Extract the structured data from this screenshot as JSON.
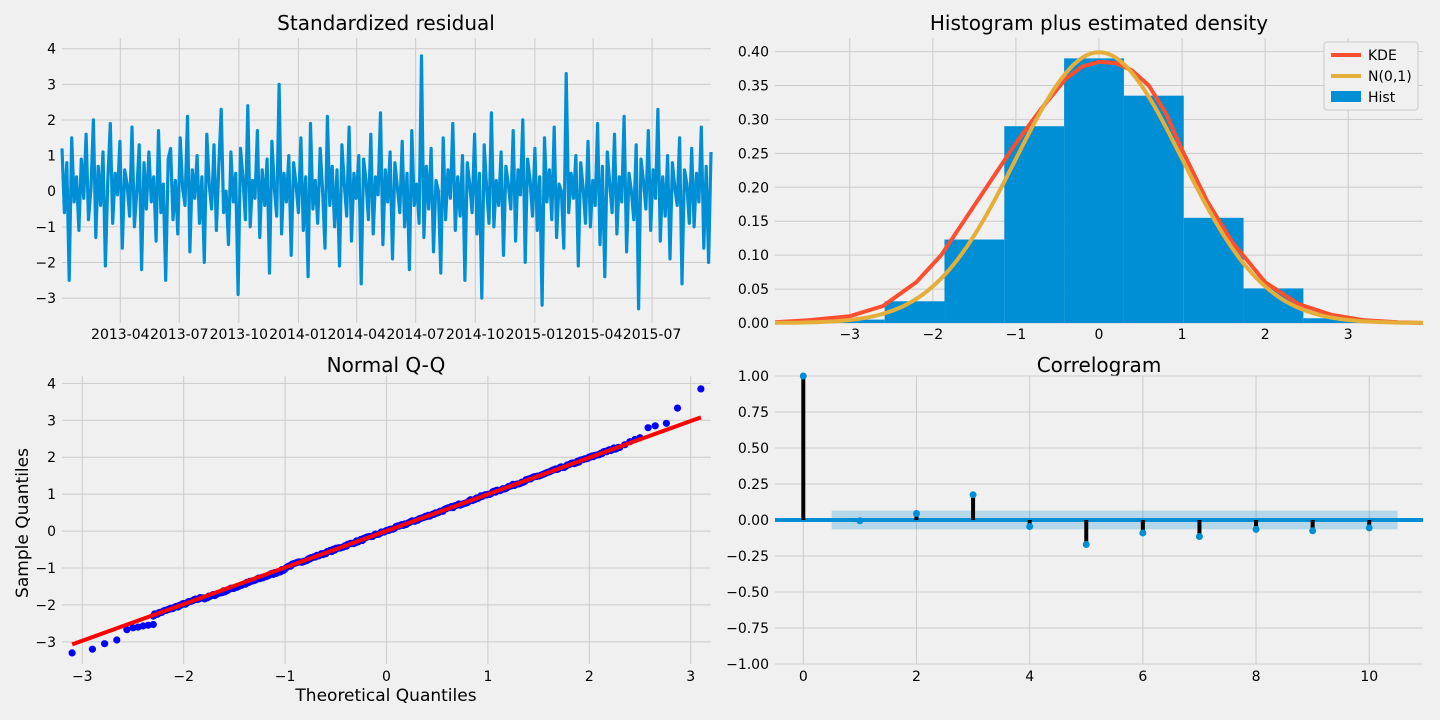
{
  "chart_data": [
    {
      "id": "resid",
      "type": "line",
      "title": "Standardized residual",
      "xlabel": "",
      "ylabel": "",
      "x_ticks": [
        "2013-04",
        "2013-07",
        "2013-10",
        "2014-01",
        "2014-04",
        "2014-07",
        "2014-10",
        "2015-01",
        "2015-04",
        "2015-07"
      ],
      "x_range": [
        "2013-01-01",
        "2015-09-30"
      ],
      "ylim": [
        -3.7,
        4.3
      ],
      "y_ticks": [
        -3,
        -2,
        -1,
        0,
        1,
        2,
        3,
        4
      ],
      "grid": true,
      "color": "#008fd5",
      "series": [
        {
          "values": [
            1.2,
            -0.6,
            0.8,
            -2.5,
            1.5,
            -0.3,
            0.4,
            -1.1,
            0.9,
            -0.2,
            1.6,
            -0.8,
            0.1,
            2.0,
            -1.3,
            0.7,
            -0.4,
            1.1,
            -2.1,
            0.3,
            1.9,
            -0.9,
            0.5,
            -0.1,
            1.4,
            -1.6,
            0.6,
            0.2,
            -0.7,
            1.8,
            -1.0,
            0.0,
            1.3,
            -2.2,
            0.8,
            -0.5,
            1.1,
            -0.3,
            0.4,
            -1.4,
            1.7,
            -0.6,
            0.2,
            -2.5,
            0.9,
            1.2,
            -0.8,
            0.3,
            -1.2,
            1.5,
            0.1,
            -0.4,
            2.1,
            -1.7,
            0.6,
            -0.2,
            1.0,
            -0.9,
            0.4,
            -2.0,
            1.6,
            0.2,
            -0.5,
            1.3,
            -1.1,
            0.7,
            2.3,
            -0.6,
            0.0,
            -1.5,
            1.1,
            -0.3,
            0.5,
            -2.9,
            1.2,
            0.4,
            -0.8,
            2.4,
            -1.0,
            0.3,
            -0.2,
            1.7,
            -1.3,
            0.6,
            -0.4,
            0.9,
            -2.3,
            1.4,
            0.1,
            -0.7,
            3.0,
            -1.2,
            0.5,
            -0.3,
            1.0,
            -1.8,
            0.8,
            0.2,
            -0.6,
            1.5,
            -1.1,
            0.4,
            -2.4,
            1.9,
            -0.5,
            0.3,
            -0.9,
            1.2,
            0.0,
            -1.6,
            2.1,
            -0.4,
            0.7,
            -1.0,
            0.6,
            -2.1,
            1.3,
            0.2,
            -0.7,
            1.8,
            -1.4,
            0.5,
            -0.2,
            1.0,
            -2.6,
            0.9,
            0.3,
            -0.8,
            1.6,
            -1.2,
            0.4,
            -0.1,
            2.2,
            -1.5,
            0.6,
            -0.3,
            1.1,
            -1.9,
            0.8,
            0.1,
            -0.6,
            1.4,
            -1.0,
            0.5,
            -2.2,
            1.7,
            -0.4,
            0.2,
            -0.9,
            3.8,
            -1.3,
            0.7,
            -0.5,
            1.2,
            -1.7,
            0.3,
            0.0,
            -2.3,
            1.5,
            -0.8,
            0.6,
            -0.2,
            1.9,
            -1.1,
            0.4,
            -0.7,
            1.0,
            -2.5,
            0.8,
            0.2,
            -0.6,
            1.6,
            -1.2,
            0.5,
            -3.0,
            1.3,
            0.1,
            -0.9,
            2.2,
            -1.0,
            0.3,
            -0.4,
            1.1,
            -1.8,
            0.7,
            0.2,
            -0.5,
            1.7,
            -1.4,
            0.6,
            -0.1,
            2.0,
            -2.0,
            0.9,
            0.3,
            -0.7,
            1.2,
            -1.1,
            0.4,
            -3.2,
            1.5,
            -0.3,
            0.6,
            -0.8,
            1.8,
            -1.3,
            0.2,
            0.0,
            -1.6,
            3.3,
            -0.6,
            0.5,
            -0.2,
            1.0,
            -2.1,
            0.8,
            0.1,
            -0.9,
            1.4,
            -1.0,
            0.3,
            -0.4,
            1.9,
            -1.5,
            0.7,
            -2.4,
            1.1,
            0.2,
            -0.6,
            1.6,
            -1.2,
            0.4,
            -0.3,
            2.1,
            -1.7,
            0.5,
            0.0,
            -0.8,
            1.3,
            -3.3,
            0.9,
            0.3,
            -0.5,
            1.7,
            -1.1,
            0.6,
            -0.2,
            2.3,
            -1.4,
            0.4,
            -0.7,
            1.0,
            -1.9,
            0.8,
            0.1,
            -0.4,
            1.5,
            -2.6,
            0.6,
            0.2,
            -0.9,
            1.2,
            -1.0,
            0.5,
            -0.3,
            1.8,
            -1.6,
            0.7,
            -2.0,
            1.1
          ]
        }
      ]
    },
    {
      "id": "hist",
      "type": "bar",
      "title": "Histogram plus estimated density",
      "xlabel": "",
      "ylabel": "",
      "xlim": [
        -3.9,
        3.9
      ],
      "ylim": [
        0,
        0.42
      ],
      "x_ticks": [
        -3,
        -2,
        -1,
        0,
        1,
        2,
        3
      ],
      "y_ticks": [
        "0.00",
        "0.05",
        "0.10",
        "0.15",
        "0.20",
        "0.25",
        "0.30",
        "0.35",
        "0.40"
      ],
      "grid": true,
      "legend_position": "top-right",
      "bins": [
        {
          "x0": -3.3,
          "x1": -2.58,
          "value": 0.005
        },
        {
          "x0": -2.58,
          "x1": -1.86,
          "value": 0.032
        },
        {
          "x0": -1.86,
          "x1": -1.14,
          "value": 0.123
        },
        {
          "x0": -1.14,
          "x1": -0.42,
          "value": 0.29
        },
        {
          "x0": -0.42,
          "x1": 0.3,
          "value": 0.39
        },
        {
          "x0": 0.3,
          "x1": 1.02,
          "value": 0.335
        },
        {
          "x0": 1.02,
          "x1": 1.74,
          "value": 0.155
        },
        {
          "x0": 1.74,
          "x1": 2.46,
          "value": 0.051
        },
        {
          "x0": 2.46,
          "x1": 3.18,
          "value": 0.007
        }
      ],
      "series": [
        {
          "name": "KDE",
          "color": "#fc4f30",
          "x": [
            -3.9,
            -3.5,
            -3.0,
            -2.6,
            -2.2,
            -1.9,
            -1.6,
            -1.3,
            -1.0,
            -0.7,
            -0.4,
            -0.2,
            0.0,
            0.2,
            0.4,
            0.6,
            0.8,
            1.0,
            1.3,
            1.6,
            2.0,
            2.4,
            2.8,
            3.2,
            3.6,
            3.9
          ],
          "values": [
            0.001,
            0.004,
            0.01,
            0.025,
            0.06,
            0.1,
            0.155,
            0.21,
            0.265,
            0.315,
            0.36,
            0.378,
            0.385,
            0.383,
            0.372,
            0.35,
            0.31,
            0.255,
            0.18,
            0.12,
            0.06,
            0.028,
            0.012,
            0.004,
            0.001,
            0.0
          ]
        },
        {
          "name": "N(0,1)",
          "color": "#e5ae38",
          "values_type": "normal_pdf"
        },
        {
          "name": "Hist",
          "color": "#008fd5"
        }
      ]
    },
    {
      "id": "qq",
      "type": "scatter",
      "title": "Normal Q-Q",
      "xlabel": "Theoretical Quantiles",
      "ylabel": "Sample Quantiles",
      "xlim": [
        -3.2,
        3.2
      ],
      "ylim": [
        -3.6,
        4.2
      ],
      "x_ticks": [
        -3,
        -2,
        -1,
        0,
        1,
        2,
        3
      ],
      "y_ticks": [
        -3,
        -2,
        -1,
        0,
        1,
        2,
        3,
        4
      ],
      "grid": true,
      "points_color": "#0000ff",
      "line_color": "#ff0000",
      "line": {
        "x": [
          -3.1,
          3.1
        ],
        "y": [
          -3.07,
          3.08
        ]
      },
      "tail_points": [
        [
          -3.1,
          -3.3
        ],
        [
          -2.9,
          -3.2
        ],
        [
          -2.78,
          -3.05
        ],
        [
          -2.66,
          -2.95
        ],
        [
          -2.56,
          -2.67
        ],
        [
          -2.5,
          -2.62
        ],
        [
          -2.45,
          -2.6
        ],
        [
          -2.4,
          -2.57
        ],
        [
          -2.35,
          -2.55
        ],
        [
          -2.3,
          -2.53
        ],
        [
          2.35,
          2.34
        ],
        [
          2.4,
          2.42
        ],
        [
          2.45,
          2.48
        ],
        [
          2.5,
          2.53
        ],
        [
          2.58,
          2.8
        ],
        [
          2.65,
          2.85
        ],
        [
          2.76,
          2.92
        ],
        [
          2.87,
          3.33
        ],
        [
          3.1,
          3.85
        ]
      ]
    },
    {
      "id": "acf",
      "type": "bar",
      "title": "Correlogram",
      "xlabel": "",
      "ylabel": "",
      "xlim": [
        -0.5,
        10.95
      ],
      "ylim": [
        -1.0,
        1.0
      ],
      "x_ticks": [
        0,
        2,
        4,
        6,
        8,
        10
      ],
      "y_ticks": [
        "−1.00",
        "−0.75",
        "−0.50",
        "−0.25",
        "0.00",
        "0.25",
        "0.50",
        "0.75",
        "1.00"
      ],
      "grid": true,
      "lags": [
        0,
        1,
        2,
        3,
        4,
        5,
        6,
        7,
        8,
        9,
        10
      ],
      "values": [
        1.0,
        -0.005,
        0.045,
        0.175,
        -0.045,
        -0.17,
        -0.09,
        -0.115,
        -0.065,
        -0.075,
        -0.055
      ],
      "conf_band": {
        "x0": 0.5,
        "x1": 10.5,
        "halfwidth": 0.065
      },
      "stem_color": "#000000",
      "marker_color": "#008fd5"
    }
  ]
}
